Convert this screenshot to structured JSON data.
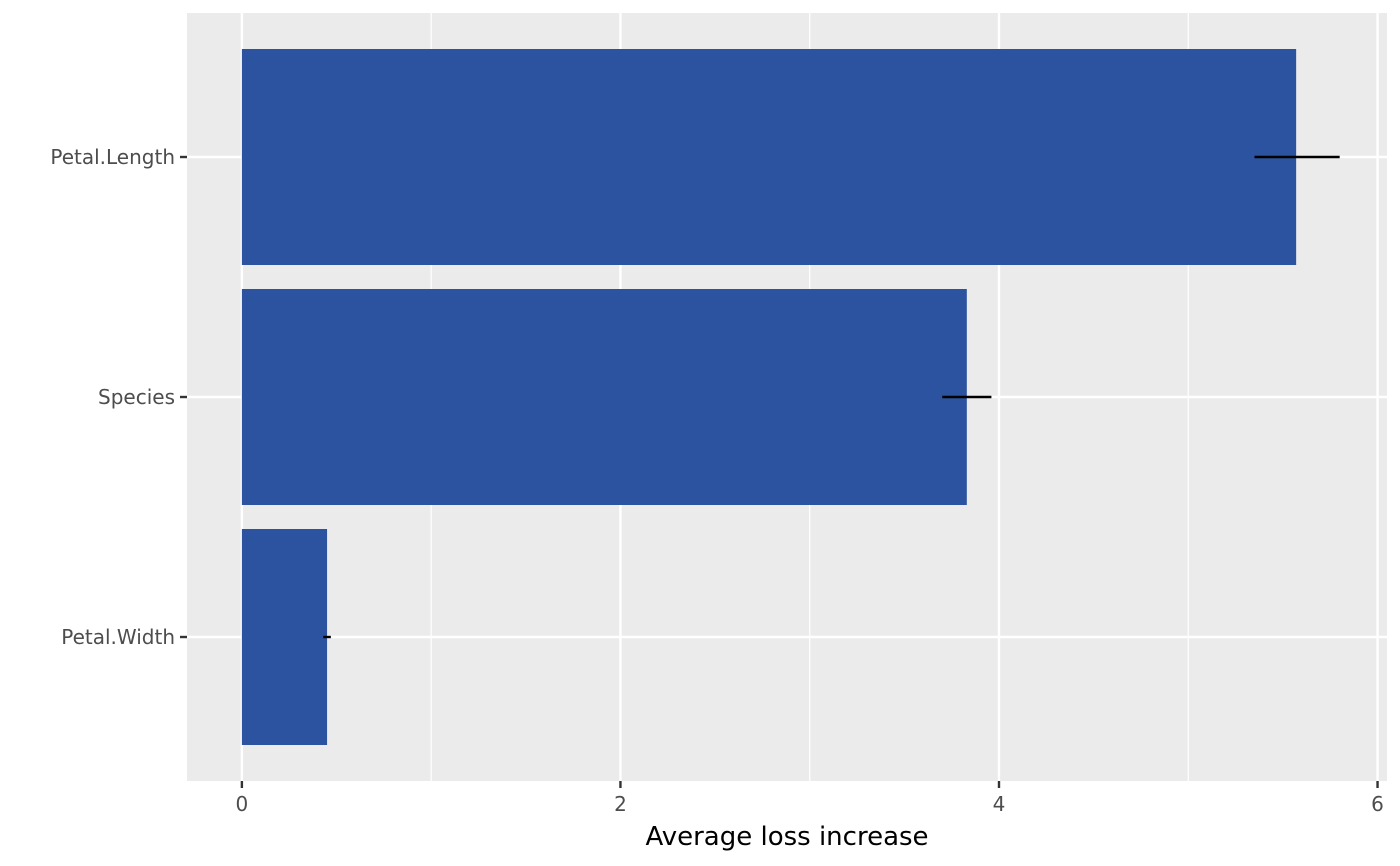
{
  "chart_data": {
    "type": "bar",
    "orientation": "horizontal",
    "title": "",
    "xlabel": "Average loss increase",
    "ylabel": "",
    "categories": [
      "Petal.Length",
      "Species",
      "Petal.Width"
    ],
    "values": [
      5.57,
      3.83,
      0.45
    ],
    "error_low": [
      5.35,
      3.7,
      0.43
    ],
    "error_high": [
      5.8,
      3.96,
      0.47
    ],
    "xlim": [
      -0.29,
      6.05
    ],
    "x_ticks": [
      0,
      2,
      4,
      6
    ],
    "x_tick_labels": [
      "0",
      "2",
      "4",
      "6"
    ],
    "grid": true,
    "legend": "none",
    "colors": {
      "bar": "#2b53a0",
      "panel": "#ebebeb",
      "grid": "#ffffff",
      "error_bar": "#000000"
    }
  }
}
